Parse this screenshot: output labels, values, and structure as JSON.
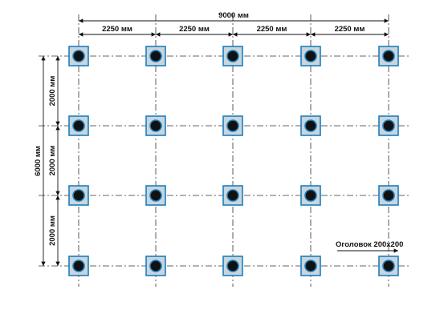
{
  "dimensions": {
    "total_width": "9000 мм",
    "spans_x": [
      "2250 мм",
      "2250 мм",
      "2250 мм",
      "2250 мм"
    ],
    "total_height": "6000 мм",
    "spans_y": [
      "2000 мм",
      "2000 мм",
      "2000 мм"
    ]
  },
  "annotation": "Оголовок 200х200"
}
